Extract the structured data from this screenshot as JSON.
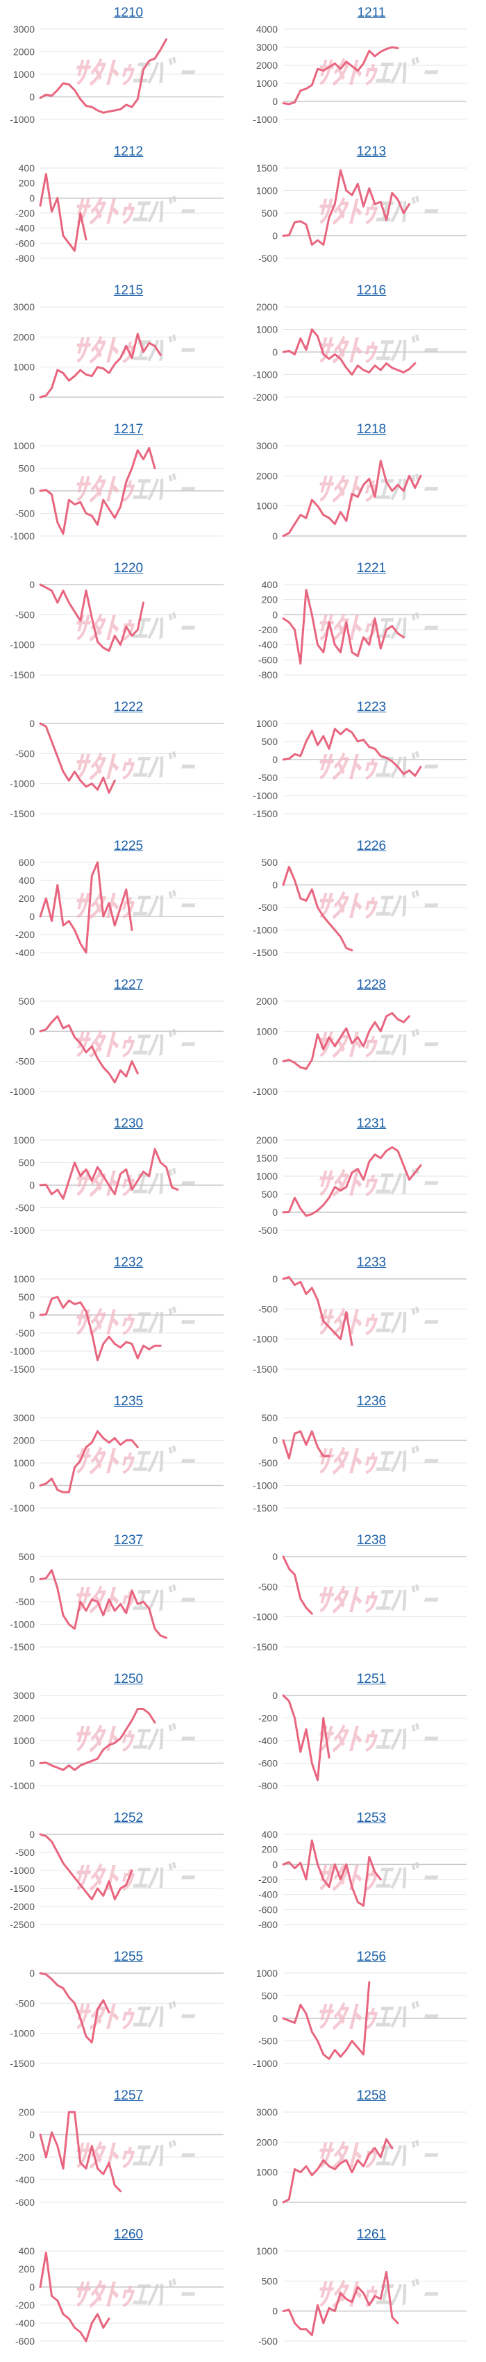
{
  "page": {
    "title": "Stock chart grid"
  },
  "watermark": {
    "left": "ｻﾀﾄｩ",
    "right": "ｴﾊﾞｰ"
  },
  "colors": {
    "line": "#e8657f",
    "grid": "#e6e6e6",
    "axis": "#c8c8c8",
    "title": "#1a5fa8",
    "watermark_left": "#f2b8c4",
    "watermark_right": "#cfcfcf"
  },
  "chart_data": [
    {
      "type": "line",
      "title": "1210",
      "yticks": [
        3000,
        2000,
        1000,
        0,
        -1000
      ],
      "ylim": [
        -1000,
        3000
      ],
      "xlen": 33,
      "values": [
        -50,
        100,
        50,
        300,
        600,
        550,
        300,
        -100,
        -400,
        -450,
        -600,
        -700,
        -650,
        -600,
        -550,
        -350,
        -450,
        -100,
        1200,
        1600,
        1700,
        2100,
        2550
      ]
    },
    {
      "type": "line",
      "title": "1211",
      "yticks": [
        4000,
        3000,
        2000,
        1000,
        0,
        -1000
      ],
      "ylim": [
        -1000,
        4000
      ],
      "xlen": 33,
      "values": [
        -100,
        -150,
        -50,
        600,
        700,
        900,
        1800,
        1700,
        1900,
        2100,
        1800,
        2200,
        1950,
        1700,
        2100,
        2800,
        2500,
        2750,
        2900,
        3000,
        2950
      ]
    },
    {
      "type": "line",
      "title": "1212",
      "yticks": [
        400,
        200,
        0,
        -200,
        -400,
        -600,
        -800
      ],
      "ylim": [
        -800,
        400
      ],
      "xlen": 33,
      "values": [
        -100,
        320,
        -180,
        0,
        -500,
        -600,
        -700,
        -200,
        -550
      ]
    },
    {
      "type": "line",
      "title": "1213",
      "yticks": [
        1500,
        1000,
        500,
        0,
        -500
      ],
      "ylim": [
        -500,
        1500
      ],
      "xlen": 33,
      "values": [
        0,
        10,
        300,
        320,
        250,
        -200,
        -100,
        -200,
        400,
        700,
        1450,
        1000,
        900,
        1150,
        650,
        1050,
        700,
        750,
        350,
        950,
        800,
        500,
        700
      ]
    },
    {
      "type": "line",
      "title": "1215",
      "yticks": [
        3000,
        2000,
        1000,
        0
      ],
      "ylim": [
        0,
        3000
      ],
      "xlen": 33,
      "values": [
        0,
        50,
        300,
        900,
        800,
        550,
        700,
        900,
        750,
        700,
        1000,
        950,
        800,
        1100,
        1300,
        1700,
        1300,
        2100,
        1500,
        1800,
        1700,
        1400
      ]
    },
    {
      "type": "line",
      "title": "1216",
      "yticks": [
        2000,
        1000,
        0,
        -1000,
        -2000
      ],
      "ylim": [
        -2000,
        2000
      ],
      "xlen": 33,
      "values": [
        0,
        50,
        -100,
        600,
        100,
        1000,
        700,
        -100,
        -300,
        -100,
        -300,
        -700,
        -1000,
        -600,
        -800,
        -900,
        -600,
        -800,
        -500,
        -700,
        -800,
        -900,
        -750,
        -500
      ]
    },
    {
      "type": "line",
      "title": "1217",
      "yticks": [
        1000,
        500,
        0,
        -500,
        -1000
      ],
      "ylim": [
        -1000,
        1000
      ],
      "xlen": 33,
      "values": [
        0,
        20,
        -80,
        -700,
        -950,
        -200,
        -300,
        -250,
        -500,
        -550,
        -750,
        -200,
        -400,
        -600,
        -350,
        200,
        500,
        900,
        700,
        950,
        500
      ]
    },
    {
      "type": "line",
      "title": "1218",
      "yticks": [
        3000,
        2000,
        1000,
        0
      ],
      "ylim": [
        0,
        3000
      ],
      "xlen": 33,
      "values": [
        0,
        100,
        400,
        700,
        600,
        1200,
        1000,
        700,
        600,
        400,
        800,
        500,
        1400,
        1300,
        1700,
        1900,
        1300,
        2500,
        1800,
        1500,
        1700,
        1500,
        2000,
        1600,
        2000
      ]
    },
    {
      "type": "line",
      "title": "1220",
      "yticks": [
        0,
        -500,
        -1000,
        -1500
      ],
      "ylim": [
        -1500,
        0
      ],
      "xlen": 33,
      "values": [
        0,
        -50,
        -100,
        -300,
        -100,
        -300,
        -450,
        -600,
        -100,
        -550,
        -950,
        -1050,
        -1100,
        -850,
        -1000,
        -700,
        -850,
        -750,
        -300
      ]
    },
    {
      "type": "line",
      "title": "1221",
      "yticks": [
        400,
        200,
        0,
        -200,
        -400,
        -600,
        -800
      ],
      "ylim": [
        -800,
        400
      ],
      "xlen": 33,
      "values": [
        -50,
        -100,
        -200,
        -650,
        330,
        0,
        -400,
        -500,
        -100,
        -400,
        -500,
        -100,
        -500,
        -550,
        -300,
        -400,
        -50,
        -450,
        -200,
        -150,
        -250,
        -300
      ]
    },
    {
      "type": "line",
      "title": "1222",
      "yticks": [
        0,
        -500,
        -1000,
        -1500
      ],
      "ylim": [
        -1500,
        0
      ],
      "xlen": 33,
      "values": [
        0,
        -50,
        -300,
        -550,
        -800,
        -950,
        -800,
        -950,
        -1050,
        -1000,
        -1100,
        -900,
        -1150,
        -950
      ]
    },
    {
      "type": "line",
      "title": "1223",
      "yticks": [
        1000,
        500,
        0,
        -500,
        -1000,
        -1500
      ],
      "ylim": [
        -1500,
        1000
      ],
      "xlen": 33,
      "values": [
        0,
        20,
        150,
        100,
        500,
        800,
        400,
        650,
        300,
        850,
        700,
        850,
        750,
        500,
        550,
        350,
        300,
        100,
        50,
        -50,
        -200,
        -400,
        -300,
        -450,
        -200
      ]
    },
    {
      "type": "line",
      "title": "1225",
      "yticks": [
        600,
        400,
        200,
        0,
        -200,
        -400
      ],
      "ylim": [
        -400,
        600
      ],
      "xlen": 33,
      "values": [
        0,
        200,
        -50,
        350,
        -100,
        -50,
        -150,
        -300,
        -400,
        450,
        600,
        0,
        150,
        -100,
        100,
        300,
        -150
      ]
    },
    {
      "type": "line",
      "title": "1226",
      "yticks": [
        500,
        0,
        -500,
        -1000,
        -1500
      ],
      "ylim": [
        -1500,
        500
      ],
      "xlen": 33,
      "values": [
        0,
        400,
        100,
        -300,
        -350,
        -100,
        -500,
        -700,
        -850,
        -1000,
        -1150,
        -1400,
        -1450
      ]
    },
    {
      "type": "line",
      "title": "1227",
      "yticks": [
        500,
        0,
        -500,
        -1000
      ],
      "ylim": [
        -1000,
        500
      ],
      "xlen": 33,
      "values": [
        0,
        30,
        150,
        250,
        50,
        100,
        -100,
        -200,
        -350,
        -250,
        -450,
        -600,
        -700,
        -850,
        -650,
        -750,
        -500,
        -700
      ]
    },
    {
      "type": "line",
      "title": "1228",
      "yticks": [
        2000,
        1000,
        0,
        -1000
      ],
      "ylim": [
        -1000,
        2000
      ],
      "xlen": 33,
      "values": [
        0,
        50,
        -50,
        -200,
        -250,
        50,
        900,
        400,
        800,
        500,
        800,
        1100,
        600,
        800,
        500,
        1000,
        1300,
        1000,
        1500,
        1600,
        1400,
        1300,
        1500
      ]
    },
    {
      "type": "line",
      "title": "1230",
      "yticks": [
        1000,
        500,
        0,
        -500,
        -1000
      ],
      "ylim": [
        -1000,
        1000
      ],
      "xlen": 33,
      "values": [
        0,
        10,
        -200,
        -100,
        -300,
        100,
        500,
        200,
        350,
        100,
        400,
        200,
        0,
        -200,
        250,
        350,
        -100,
        100,
        300,
        200,
        800,
        500,
        400,
        -50,
        -100
      ]
    },
    {
      "type": "line",
      "title": "1231",
      "yticks": [
        2000,
        1500,
        1000,
        500,
        0,
        -500
      ],
      "ylim": [
        -500,
        2000
      ],
      "xlen": 33,
      "values": [
        0,
        10,
        400,
        100,
        -100,
        -50,
        50,
        200,
        400,
        700,
        600,
        700,
        1100,
        1200,
        900,
        1400,
        1600,
        1500,
        1700,
        1800,
        1700,
        1300,
        900,
        1100,
        1300
      ]
    },
    {
      "type": "line",
      "title": "1232",
      "yticks": [
        1000,
        500,
        0,
        -500,
        -1000,
        -1500
      ],
      "ylim": [
        -1500,
        1000
      ],
      "xlen": 33,
      "values": [
        0,
        20,
        450,
        500,
        200,
        400,
        300,
        350,
        100,
        -500,
        -1250,
        -800,
        -600,
        -800,
        -900,
        -750,
        -800,
        -1200,
        -850,
        -950,
        -850,
        -850
      ]
    },
    {
      "type": "line",
      "title": "1233",
      "yticks": [
        0,
        -500,
        -1000,
        -1500
      ],
      "ylim": [
        -1500,
        0
      ],
      "xlen": 33,
      "values": [
        0,
        30,
        -100,
        -50,
        -250,
        -150,
        -350,
        -700,
        -800,
        -900,
        -1000,
        -550,
        -1100
      ]
    },
    {
      "type": "line",
      "title": "1235",
      "yticks": [
        3000,
        2000,
        1000,
        0,
        -1000
      ],
      "ylim": [
        -1000,
        3000
      ],
      "xlen": 33,
      "values": [
        0,
        80,
        300,
        -200,
        -300,
        -300,
        800,
        1100,
        1700,
        1900,
        2400,
        2100,
        1900,
        2100,
        1800,
        2000,
        2000,
        1700
      ]
    },
    {
      "type": "line",
      "title": "1236",
      "yticks": [
        500,
        0,
        -500,
        -1000,
        -1500
      ],
      "ylim": [
        -1500,
        500
      ],
      "xlen": 33,
      "values": [
        0,
        -400,
        150,
        200,
        -100,
        200,
        -150,
        -350,
        -350
      ]
    },
    {
      "type": "line",
      "title": "1237",
      "yticks": [
        500,
        0,
        -500,
        -1000,
        -1500
      ],
      "ylim": [
        -1500,
        500
      ],
      "xlen": 33,
      "values": [
        0,
        20,
        200,
        -200,
        -800,
        -1000,
        -1100,
        -500,
        -700,
        -450,
        -500,
        -800,
        -450,
        -700,
        -550,
        -750,
        -250,
        -550,
        -500,
        -650,
        -1100,
        -1250,
        -1300
      ]
    },
    {
      "type": "line",
      "title": "1238",
      "yticks": [
        0,
        -500,
        -1000,
        -1500
      ],
      "ylim": [
        -1500,
        0
      ],
      "xlen": 33,
      "values": [
        0,
        -200,
        -300,
        -700,
        -850,
        -950
      ]
    },
    {
      "type": "line",
      "title": "1250",
      "yticks": [
        3000,
        2000,
        1000,
        0,
        -1000
      ],
      "ylim": [
        -1000,
        3000
      ],
      "xlen": 33,
      "values": [
        0,
        20,
        -100,
        -200,
        -300,
        -100,
        -300,
        -100,
        0,
        100,
        200,
        600,
        800,
        900,
        1100,
        1500,
        1900,
        2400,
        2400,
        2200,
        1800
      ]
    },
    {
      "type": "line",
      "title": "1251",
      "yticks": [
        0,
        -200,
        -400,
        -600,
        -800
      ],
      "ylim": [
        -800,
        0
      ],
      "xlen": 33,
      "values": [
        0,
        -50,
        -200,
        -500,
        -300,
        -600,
        -750,
        -200,
        -550
      ]
    },
    {
      "type": "line",
      "title": "1252",
      "yticks": [
        0,
        -500,
        -1000,
        -1500,
        -2000,
        -2500
      ],
      "ylim": [
        -2500,
        0
      ],
      "xlen": 33,
      "values": [
        0,
        -50,
        -200,
        -500,
        -800,
        -1000,
        -1200,
        -1400,
        -1600,
        -1800,
        -1500,
        -1700,
        -1300,
        -1800,
        -1500,
        -1400,
        -1000
      ]
    },
    {
      "type": "line",
      "title": "1253",
      "yticks": [
        400,
        200,
        0,
        -200,
        -400,
        -600,
        -800
      ],
      "ylim": [
        -800,
        400
      ],
      "xlen": 33,
      "values": [
        0,
        30,
        -50,
        20,
        -200,
        320,
        0,
        -200,
        -300,
        0,
        -200,
        0,
        -300,
        -500,
        -550,
        100,
        -100,
        -200
      ]
    },
    {
      "type": "line",
      "title": "1255",
      "yticks": [
        0,
        -500,
        -1000,
        -1500
      ],
      "ylim": [
        -1500,
        0
      ],
      "xlen": 33,
      "values": [
        0,
        -20,
        -100,
        -200,
        -250,
        -400,
        -500,
        -750,
        -1050,
        -1150,
        -600,
        -450,
        -650
      ]
    },
    {
      "type": "line",
      "title": "1256",
      "yticks": [
        1000,
        500,
        0,
        -500,
        -1000
      ],
      "ylim": [
        -1000,
        1000
      ],
      "xlen": 33,
      "values": [
        0,
        -50,
        -100,
        300,
        100,
        -300,
        -500,
        -800,
        -900,
        -700,
        -850,
        -700,
        -500,
        -650,
        -800,
        800
      ]
    },
    {
      "type": "line",
      "title": "1257",
      "yticks": [
        200,
        0,
        -200,
        -400,
        -600
      ],
      "ylim": [
        -600,
        200
      ],
      "xlen": 33,
      "values": [
        0,
        -200,
        20,
        -100,
        -300,
        200,
        200,
        -250,
        -300,
        -100,
        -300,
        -350,
        -250,
        -450,
        -500
      ]
    },
    {
      "type": "line",
      "title": "1258",
      "yticks": [
        3000,
        2000,
        1000,
        0
      ],
      "ylim": [
        0,
        3000
      ],
      "xlen": 33,
      "values": [
        0,
        100,
        1100,
        1000,
        1200,
        900,
        1100,
        1400,
        1200,
        1100,
        1300,
        1400,
        1000,
        1400,
        1200,
        1600,
        1800,
        1500,
        2100,
        1800
      ]
    },
    {
      "type": "line",
      "title": "1260",
      "yticks": [
        400,
        200,
        0,
        -200,
        -400,
        -600
      ],
      "ylim": [
        -600,
        400
      ],
      "xlen": 33,
      "values": [
        0,
        380,
        -100,
        -150,
        -300,
        -350,
        -450,
        -500,
        -600,
        -400,
        -300,
        -450,
        -350
      ]
    },
    {
      "type": "line",
      "title": "1261",
      "yticks": [
        1000,
        500,
        0,
        -500
      ],
      "ylim": [
        -500,
        1000
      ],
      "xlen": 33,
      "values": [
        0,
        20,
        -200,
        -300,
        -300,
        -400,
        100,
        -200,
        50,
        0,
        300,
        200,
        150,
        400,
        300,
        100,
        250,
        200,
        650,
        -100,
        -200
      ]
    }
  ]
}
